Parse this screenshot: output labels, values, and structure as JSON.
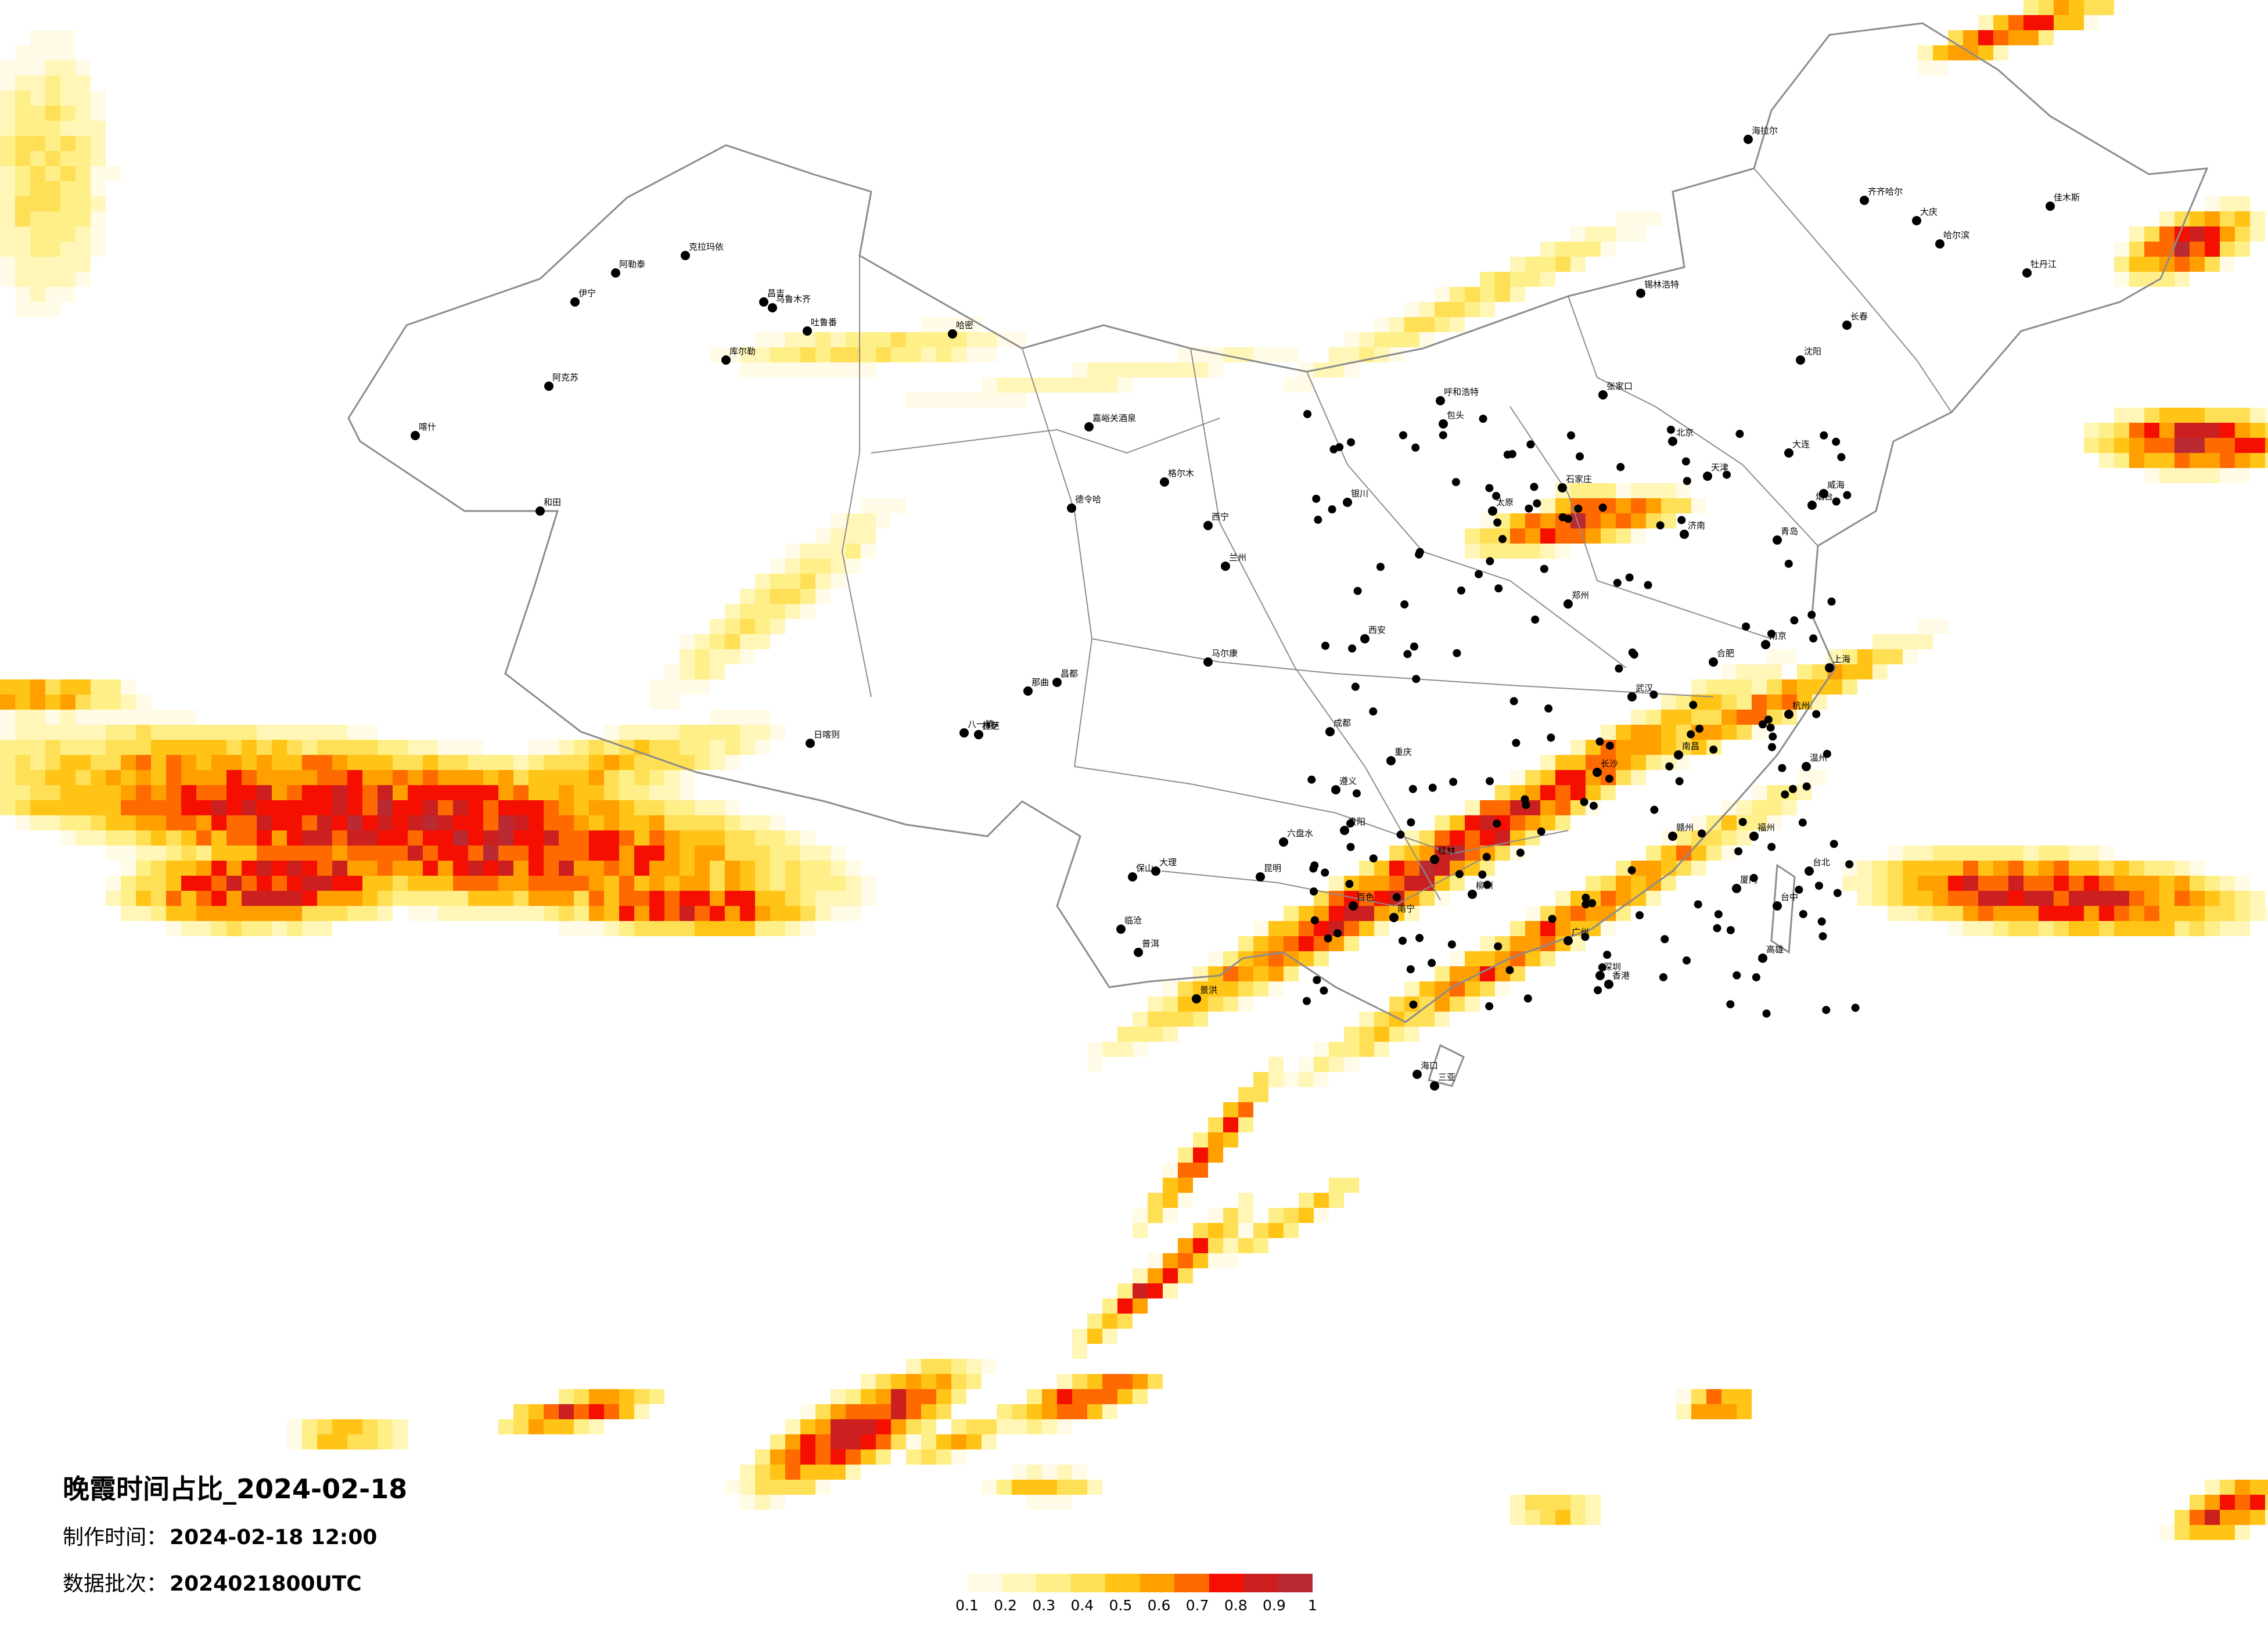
{
  "title": "晚霞时间占比_2024-02-18",
  "made_time": {
    "label": "制作时间：",
    "value": "2024-02-18 12:00"
  },
  "data_batch": {
    "label": "数据批次：",
    "value": "2024021800UTC"
  },
  "legend": {
    "labels": [
      "0.1",
      "0.2",
      "0.3",
      "0.4",
      "0.5",
      "0.6",
      "0.7",
      "0.8",
      "0.9",
      "1"
    ],
    "colors": [
      "#fffbe6",
      "#fff6b8",
      "#ffef88",
      "#ffdf55",
      "#ffc416",
      "#ff9f00",
      "#ff6a00",
      "#f50f00",
      "#cc2020",
      "#ba2a33"
    ]
  },
  "colors": {
    "outline": "#8c8c8c",
    "city_dot": "#000000",
    "background": "#ffffff"
  },
  "cities": [
    "克拉玛依",
    "昌吉",
    "乌鲁木齐",
    "吐鲁番",
    "哈密",
    "库尔勒",
    "阿克苏",
    "伊宁",
    "喀什",
    "和田",
    "阿勒泰",
    "嘉峪关酒泉",
    "德令哈",
    "格尔木",
    "拉萨",
    "日喀则",
    "林芝",
    "八一镇",
    "那曲",
    "昌都",
    "马尔康",
    "西宁",
    "兰州",
    "银川",
    "呼和浩特",
    "包头",
    "北京",
    "天津",
    "石家庄",
    "太原",
    "郑州",
    "西安",
    "成都",
    "重庆",
    "贵阳",
    "昆明",
    "南宁",
    "广州",
    "深圳",
    "香港",
    "福州",
    "南昌",
    "长沙",
    "武汉",
    "合肥",
    "南京",
    "上海",
    "杭州",
    "济南",
    "沈阳",
    "长春",
    "哈尔滨",
    "海拉尔",
    "齐齐哈尔",
    "大庆",
    "佳木斯",
    "牡丹江",
    "锡林浩特",
    "张家口",
    "大连",
    "青岛",
    "烟台",
    "威海",
    "台北",
    "台中",
    "高雄",
    "海口",
    "三亚",
    "遵义",
    "六盘水",
    "大理",
    "保山",
    "临沧",
    "普洱",
    "景洪",
    "百色",
    "桂林",
    "柳州",
    "赣州",
    "厦门",
    "温州"
  ]
}
